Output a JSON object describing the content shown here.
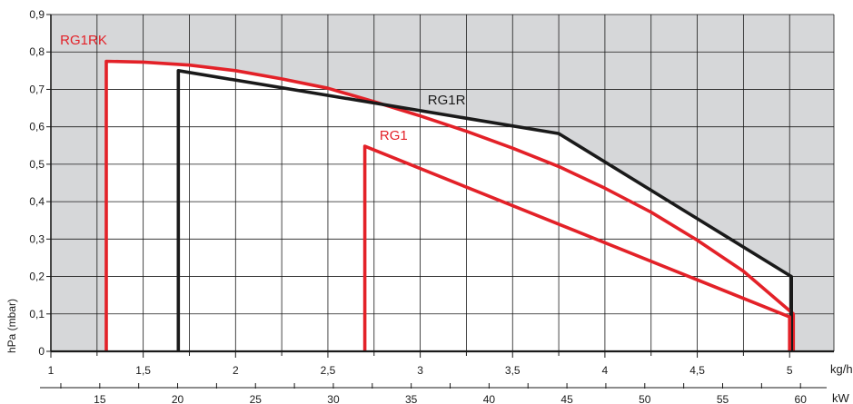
{
  "chart_data": {
    "type": "line",
    "title": "",
    "xlabel": "kg/h",
    "x2label": "kW",
    "ylabel": "hPa (mbar)",
    "xlim": [
      1,
      5.24
    ],
    "ylim": [
      0,
      0.9
    ],
    "x_ticks": [
      "1",
      "1,5",
      "2",
      "2,5",
      "3",
      "3,5",
      "4",
      "4,5",
      "5"
    ],
    "x_tick_values": [
      1,
      1.5,
      2,
      2.5,
      3,
      3.5,
      4,
      4.5,
      5
    ],
    "y_ticks": [
      "0",
      "0,1",
      "0,2",
      "0,3",
      "0,4",
      "0,5",
      "0,6",
      "0,7",
      "0,8",
      "0,9"
    ],
    "y_tick_values": [
      0,
      0.1,
      0.2,
      0.3,
      0.4,
      0.5,
      0.6,
      0.7,
      0.8,
      0.9
    ],
    "x2_ticks": [
      "15",
      "20",
      "25",
      "30",
      "35",
      "40",
      "45",
      "50",
      "55",
      "60"
    ],
    "x2_tick_values": [
      15,
      20,
      25,
      30,
      35,
      40,
      45,
      50,
      55,
      60
    ],
    "x2_scale": {
      "kw_per_kgh": 11.86
    },
    "grid": true,
    "colors": {
      "background_area": "#d6d7d9",
      "envelope_fill": "#ffffff",
      "grid": "#1a1a1a",
      "RG1RK": "#e32128",
      "RG1R": "#1a1a1a",
      "RG1": "#e32128"
    },
    "series": [
      {
        "name": "RG1RK",
        "color": "#e32128",
        "x": [
          1.3,
          1.3,
          1.5,
          1.75,
          2,
          2.25,
          2.5,
          2.75,
          3,
          3.25,
          3.5,
          3.75,
          4,
          4.25,
          4.5,
          4.75,
          5.02,
          5.02
        ],
        "y": [
          0,
          0.775,
          0.773,
          0.765,
          0.75,
          0.728,
          0.703,
          0.667,
          0.629,
          0.588,
          0.543,
          0.494,
          0.436,
          0.372,
          0.297,
          0.214,
          0.1,
          0
        ]
      },
      {
        "name": "RG1R",
        "color": "#1a1a1a",
        "x": [
          1.69,
          1.69,
          3.75,
          5.01,
          5.01
        ],
        "y": [
          0,
          0.75,
          0.582,
          0.2,
          0
        ]
      },
      {
        "name": "RG1",
        "color": "#e32128",
        "x": [
          2.7,
          2.7,
          5.0,
          5.0
        ],
        "y": [
          0,
          0.548,
          0.092,
          0
        ]
      }
    ],
    "labels": [
      {
        "text": "RG1RK",
        "series": "RG1RK",
        "x": 1.05,
        "y": 0.82
      },
      {
        "text": "RG1R",
        "series": "RG1R",
        "x": 3.04,
        "y": 0.66
      },
      {
        "text": "RG1",
        "series": "RG1",
        "x": 2.78,
        "y": 0.565
      }
    ]
  }
}
